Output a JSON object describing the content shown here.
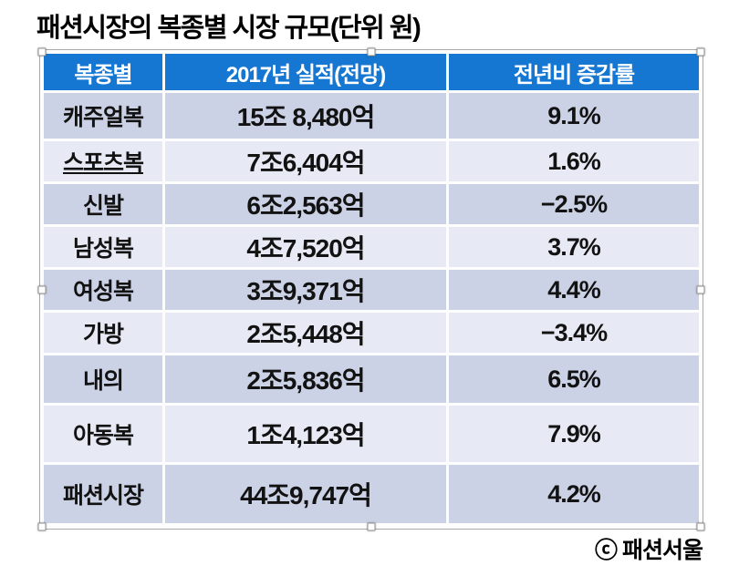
{
  "title": "패션시장의 복종별 시장 규모(단위 원)",
  "credit": "ⓒ 패션서울",
  "colors": {
    "header_bg": "#1577d2",
    "header_text": "#ffffff",
    "row_alt_dark": "#ccd2e5",
    "row_alt_light": "#e7eaf4",
    "gap": "#fdfdfd",
    "text": "#121212"
  },
  "table": {
    "headers": [
      "복종별",
      "2017년 실적(전망)",
      "전년비 증감률"
    ],
    "rows": [
      {
        "category": "캐주얼복",
        "value": "15조 8,480억",
        "change": "9.1%",
        "underline": false
      },
      {
        "category": "스포츠복",
        "value": "7조6,404억",
        "change": "1.6%",
        "underline": true
      },
      {
        "category": "신발",
        "value": "6조2,563억",
        "change": "−2.5%",
        "underline": false
      },
      {
        "category": "남성복",
        "value": "4조7,520억",
        "change": "3.7%",
        "underline": false
      },
      {
        "category": "여성복",
        "value": "3조9,371억",
        "change": "4.4%",
        "underline": false
      },
      {
        "category": "가방",
        "value": "2조5,448억",
        "change": "−3.4%",
        "underline": false
      },
      {
        "category": "내의",
        "value": "2조5,836억",
        "change": "6.5%",
        "underline": false
      },
      {
        "category": "아동복",
        "value": "1조4,123억",
        "change": "7.9%",
        "underline": false
      },
      {
        "category": "패션시장",
        "value": "44조9,747억",
        "change": "4.2%",
        "underline": false
      }
    ]
  },
  "chart_data": {
    "type": "table",
    "title": "패션시장의 복종별 시장 규모(단위 원)",
    "columns": [
      "복종별",
      "2017년 실적(전망)",
      "전년비 증감률"
    ],
    "rows": [
      [
        "캐주얼복",
        "15조 8,480억",
        "9.1%"
      ],
      [
        "스포츠복",
        "7조6,404억",
        "1.6%"
      ],
      [
        "신발",
        "6조2,563억",
        "−2.5%"
      ],
      [
        "남성복",
        "4조7,520억",
        "3.7%"
      ],
      [
        "여성복",
        "3조9,371억",
        "4.4%"
      ],
      [
        "가방",
        "2조5,448억",
        "−3.4%"
      ],
      [
        "내의",
        "2조5,836억",
        "6.5%"
      ],
      [
        "아동복",
        "1조4,123억",
        "7.9%"
      ],
      [
        "패션시장",
        "44조9,747억",
        "4.2%"
      ]
    ],
    "yoy_change_pct": [
      9.1,
      1.6,
      -2.5,
      3.7,
      4.4,
      -3.4,
      6.5,
      7.9,
      4.2
    ],
    "source_credit": "ⓒ 패션서울"
  }
}
